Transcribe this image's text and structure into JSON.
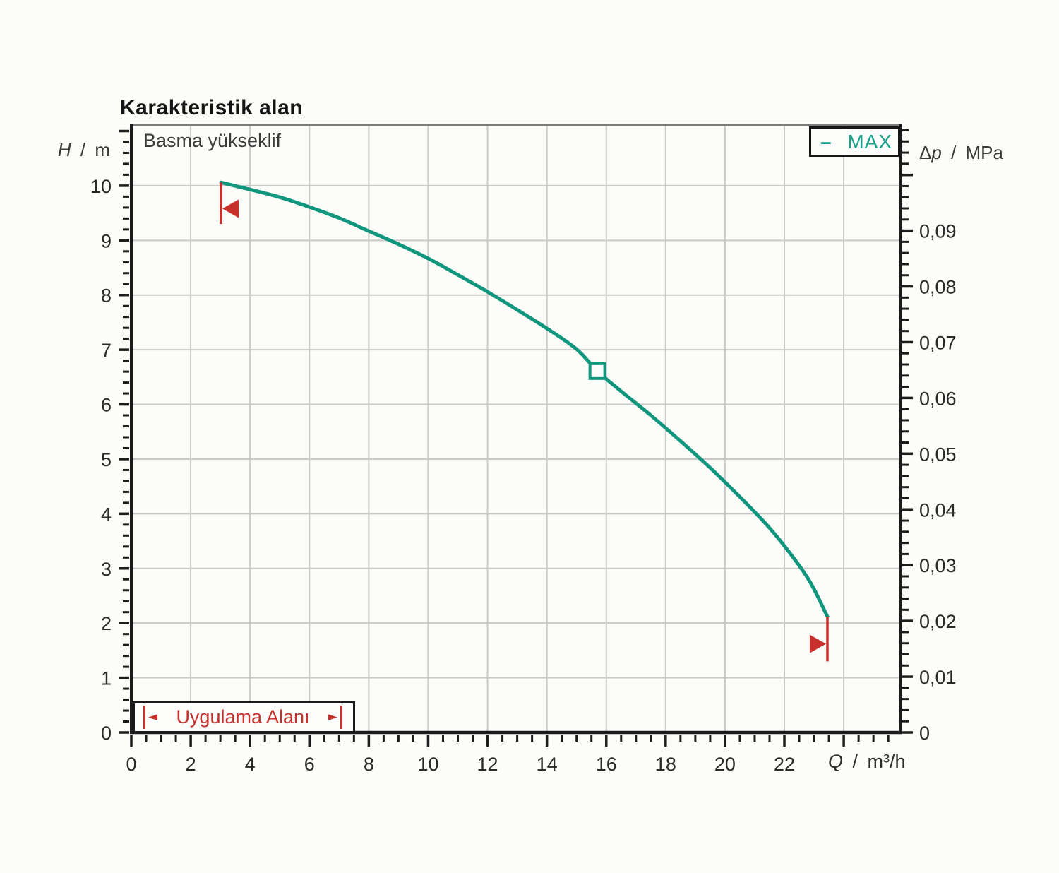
{
  "chart_data": {
    "type": "line",
    "title": "Karakteristik alan",
    "inner_label": "Basma yükseklif",
    "legend": {
      "dash": "–",
      "label": "MAX"
    },
    "colors": {
      "curve": "#11967e",
      "accent_red": "#c8302b",
      "grid": "#c9c9c9",
      "axis": "#1c1c1c",
      "top_frame": "#7c7c7c",
      "tick_text": "#2a2a2a",
      "background": "#fdfdfb"
    },
    "x_axis": {
      "symbol": "Q",
      "separator": " / ",
      "unit": "m³/h",
      "min": 0,
      "max": 25.9,
      "tick_labels": [
        "0",
        "2",
        "4",
        "6",
        "8",
        "10",
        "12",
        "14",
        "16",
        "18",
        "20",
        "22"
      ],
      "tick_values": [
        0,
        2,
        4,
        6,
        8,
        10,
        12,
        14,
        16,
        18,
        20,
        22
      ],
      "major_step": 2,
      "major_max": 24,
      "minor_step": 0.5,
      "minor_max": 25.5,
      "grid_values": [
        2,
        4,
        6,
        8,
        10,
        12,
        14,
        16,
        18,
        20,
        22,
        24
      ]
    },
    "y_left": {
      "symbol": "H",
      "separator": " / ",
      "unit": "m",
      "min": 0,
      "max": 11.11,
      "tick_labels": [
        "0",
        "1",
        "2",
        "3",
        "4",
        "5",
        "6",
        "7",
        "8",
        "9",
        "10"
      ],
      "tick_values": [
        0,
        1,
        2,
        3,
        4,
        5,
        6,
        7,
        8,
        9,
        10
      ],
      "major_step": 1,
      "major_max": 11,
      "minor_step": 0.2,
      "minor_max": 11.0,
      "grid_values": [
        1,
        2,
        3,
        4,
        5,
        6,
        7,
        8,
        9,
        10
      ]
    },
    "y_right": {
      "symbol_prefix": "Δ",
      "symbol": "p",
      "separator": " / ",
      "unit": "MPa",
      "min": 0,
      "max": 0.1088,
      "meters_per_unit": 101.972,
      "tick_labels": [
        "0",
        "0,01",
        "0,02",
        "0,03",
        "0,04",
        "0,05",
        "0,06",
        "0,07",
        "0,08",
        "0,09"
      ],
      "tick_values": [
        0,
        0.01,
        0.02,
        0.03,
        0.04,
        0.05,
        0.06,
        0.07,
        0.08,
        0.09
      ],
      "major_step": 0.01,
      "major_max": 0.1,
      "minor_step": 0.002,
      "minor_max": 0.108
    },
    "series": [
      {
        "name": "MAX",
        "points": [
          [
            3.02,
            10.06
          ],
          [
            4,
            9.93
          ],
          [
            5,
            9.79
          ],
          [
            6,
            9.61
          ],
          [
            7,
            9.41
          ],
          [
            8,
            9.17
          ],
          [
            9,
            8.93
          ],
          [
            10,
            8.67
          ],
          [
            11,
            8.37
          ],
          [
            12,
            8.06
          ],
          [
            13,
            7.73
          ],
          [
            14,
            7.39
          ],
          [
            15,
            7.01
          ],
          [
            15.7,
            6.61
          ],
          [
            16.5,
            6.24
          ],
          [
            17.5,
            5.8
          ],
          [
            18.5,
            5.33
          ],
          [
            19.5,
            4.84
          ],
          [
            20.5,
            4.31
          ],
          [
            21.5,
            3.74
          ],
          [
            22.3,
            3.2
          ],
          [
            22.9,
            2.72
          ],
          [
            23.45,
            2.12
          ]
        ]
      }
    ],
    "duty_point": {
      "q": 15.7,
      "h": 6.61,
      "marker": "open-square"
    },
    "flow_limits": {
      "min": {
        "q": 3.02,
        "line_from": 10.06,
        "line_to": 9.3,
        "arrow_at": 9.58,
        "direction": "left"
      },
      "max": {
        "q": 23.45,
        "line_from": 2.12,
        "line_to": 1.3,
        "arrow_at": 1.62,
        "direction": "right"
      }
    },
    "application_area": {
      "label": "Uygulama Alanı",
      "arrow_left": "◄",
      "arrow_right": "►"
    }
  }
}
